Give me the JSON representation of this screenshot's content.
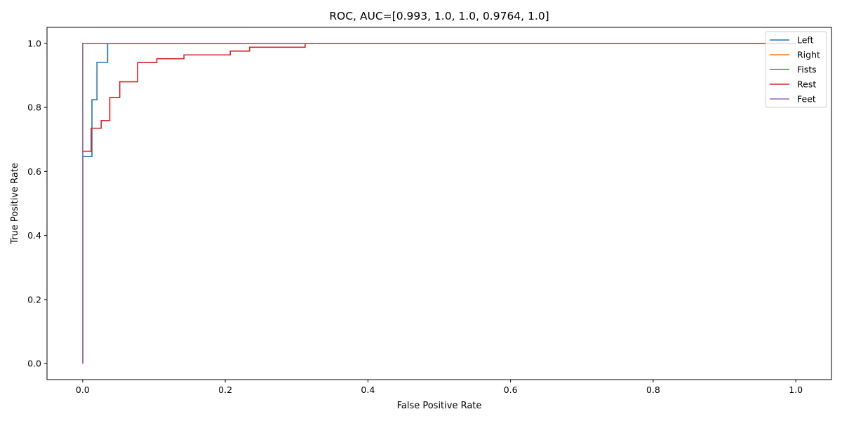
{
  "chart_data": {
    "type": "line",
    "title": "ROC, AUC=[0.993, 1.0, 1.0, 0.9764, 1.0]",
    "xlabel": "False Positive Rate",
    "ylabel": "True Positive Rate",
    "xlim": [
      -0.05,
      1.05
    ],
    "ylim": [
      -0.05,
      1.05
    ],
    "xticks": [
      "0.0",
      "0.2",
      "0.4",
      "0.6",
      "0.8",
      "1.0"
    ],
    "yticks": [
      "0.0",
      "0.2",
      "0.4",
      "0.6",
      "0.8",
      "1.0"
    ],
    "grid": false,
    "legend_position": "top-right",
    "series": [
      {
        "name": "Left",
        "color": "#1f77b4",
        "points": [
          [
            0,
            0
          ],
          [
            0,
            0.647
          ],
          [
            0.013,
            0.647
          ],
          [
            0.013,
            0.824
          ],
          [
            0.02,
            0.824
          ],
          [
            0.02,
            0.941
          ],
          [
            0.035,
            0.941
          ],
          [
            0.035,
            1.0
          ],
          [
            1.0,
            1.0
          ]
        ]
      },
      {
        "name": "Right",
        "color": "#ff7f0e",
        "points": [
          [
            0,
            0
          ],
          [
            0,
            1.0
          ],
          [
            1.0,
            1.0
          ]
        ]
      },
      {
        "name": "Fists",
        "color": "#2ca02c",
        "points": [
          [
            0,
            0
          ],
          [
            0,
            1.0
          ],
          [
            1.0,
            1.0
          ]
        ]
      },
      {
        "name": "Rest",
        "color": "#d62728",
        "points": [
          [
            0,
            0
          ],
          [
            0,
            0.663
          ],
          [
            0.012,
            0.663
          ],
          [
            0.012,
            0.735
          ],
          [
            0.026,
            0.735
          ],
          [
            0.026,
            0.759
          ],
          [
            0.038,
            0.759
          ],
          [
            0.038,
            0.831
          ],
          [
            0.052,
            0.831
          ],
          [
            0.052,
            0.88
          ],
          [
            0.077,
            0.88
          ],
          [
            0.077,
            0.94
          ],
          [
            0.104,
            0.94
          ],
          [
            0.104,
            0.952
          ],
          [
            0.142,
            0.952
          ],
          [
            0.142,
            0.964
          ],
          [
            0.207,
            0.964
          ],
          [
            0.207,
            0.976
          ],
          [
            0.234,
            0.976
          ],
          [
            0.234,
            0.988
          ],
          [
            0.312,
            0.988
          ],
          [
            0.312,
            1.0
          ],
          [
            1.0,
            1.0
          ]
        ]
      },
      {
        "name": "Feet",
        "color": "#9467bd",
        "points": [
          [
            0,
            0
          ],
          [
            0,
            1.0
          ],
          [
            1.0,
            1.0
          ]
        ]
      }
    ]
  }
}
